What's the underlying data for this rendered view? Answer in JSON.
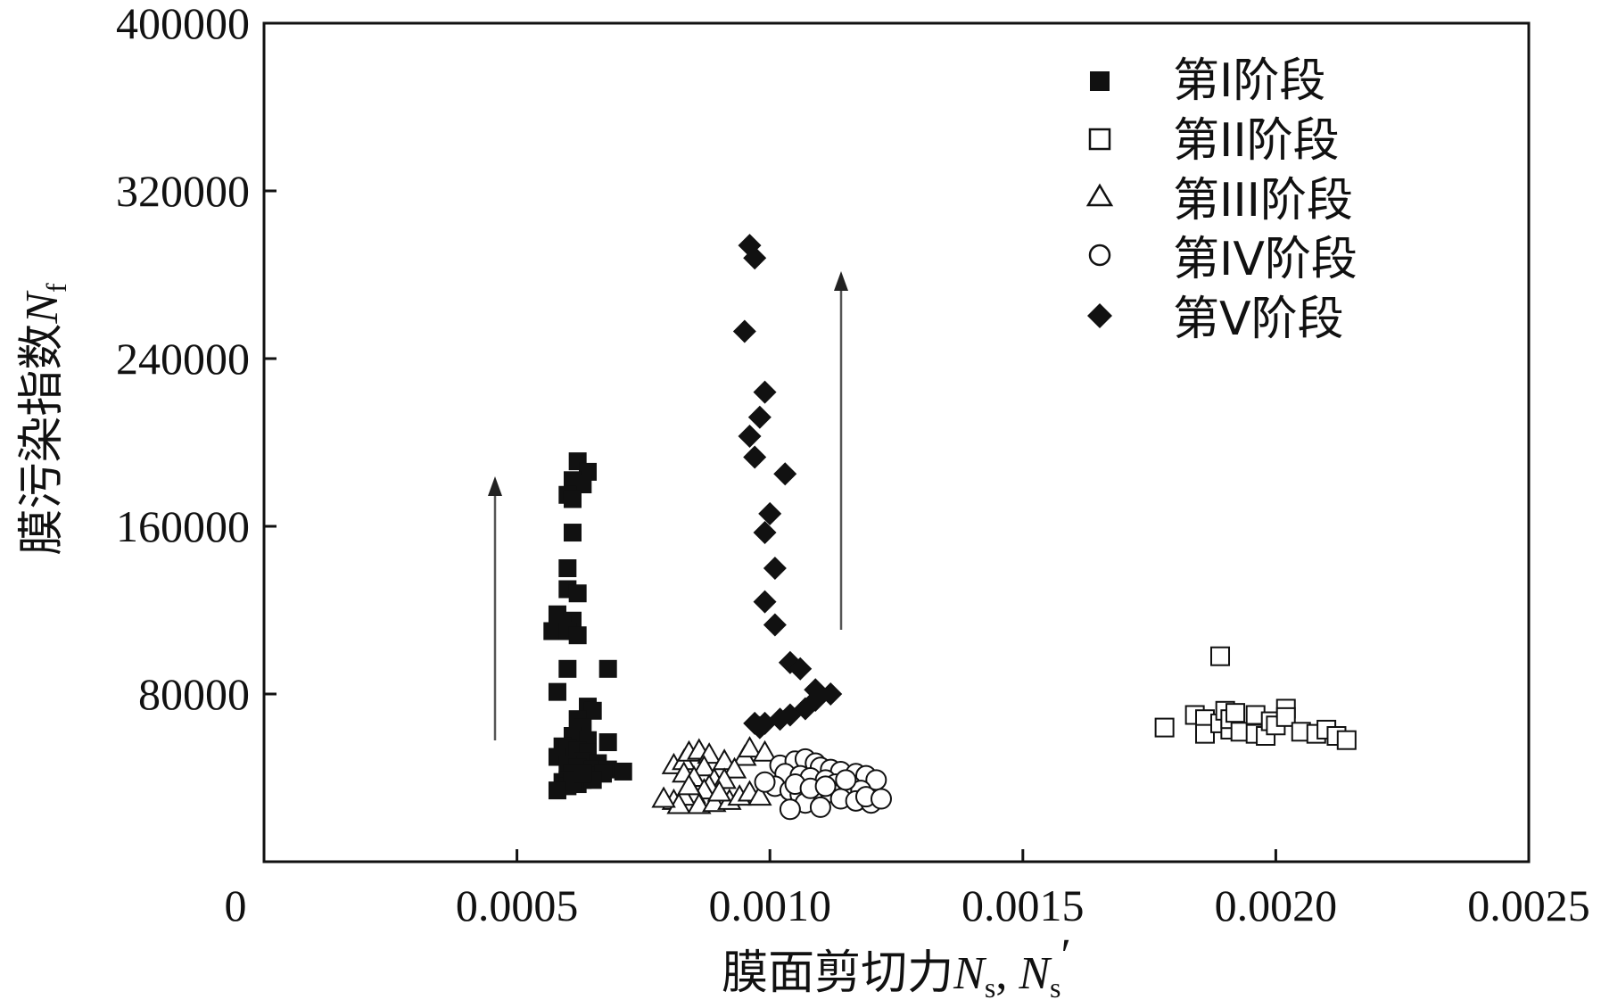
{
  "chart_data": {
    "type": "scatter",
    "title": "",
    "xlabel": {
      "text": "膜面剪切力",
      "var1": "N",
      "sub1": "s",
      "sep": ", ",
      "var2": "N",
      "sub2": "s",
      "prime": "′"
    },
    "ylabel": {
      "text": "膜污染指数",
      "var": "N",
      "sub": "f"
    },
    "xlim": [
      0,
      0.0025
    ],
    "ylim": [
      0,
      400000
    ],
    "x_ticks": [
      {
        "value": 0,
        "label": "0"
      },
      {
        "value": 0.0005,
        "label": "0.0005"
      },
      {
        "value": 0.001,
        "label": "0.0010"
      },
      {
        "value": 0.0015,
        "label": "0.0015"
      },
      {
        "value": 0.002,
        "label": "0.0020"
      },
      {
        "value": 0.0025,
        "label": "0.0025"
      }
    ],
    "y_ticks": [
      {
        "value": 80000,
        "label": "80000"
      },
      {
        "value": 160000,
        "label": "160000"
      },
      {
        "value": 240000,
        "label": "240000"
      },
      {
        "value": 320000,
        "label": "320000"
      },
      {
        "value": 400000,
        "label": "400000"
      }
    ],
    "grid": false,
    "legend_position": "top-right",
    "series": [
      {
        "name": "第I阶段",
        "marker": "square-filled",
        "color": "#111111",
        "points": [
          [
            0.00062,
            191000
          ],
          [
            0.00064,
            186000
          ],
          [
            0.00061,
            182000
          ],
          [
            0.00063,
            180000
          ],
          [
            0.0006,
            175000
          ],
          [
            0.00061,
            173000
          ],
          [
            0.00061,
            157000
          ],
          [
            0.0006,
            140000
          ],
          [
            0.0006,
            130000
          ],
          [
            0.00062,
            128000
          ],
          [
            0.00058,
            118000
          ],
          [
            0.00061,
            115000
          ],
          [
            0.00059,
            113000
          ],
          [
            0.00057,
            110000
          ],
          [
            0.0006,
            110000
          ],
          [
            0.00062,
            108000
          ],
          [
            0.0006,
            92000
          ],
          [
            0.00068,
            92000
          ],
          [
            0.00058,
            81000
          ],
          [
            0.00064,
            74000
          ],
          [
            0.00065,
            72000
          ],
          [
            0.00062,
            68000
          ],
          [
            0.00063,
            64000
          ],
          [
            0.00061,
            60000
          ],
          [
            0.00064,
            58000
          ],
          [
            0.00068,
            57000
          ],
          [
            0.00059,
            55000
          ],
          [
            0.0006,
            54000
          ],
          [
            0.00062,
            53000
          ],
          [
            0.00064,
            52000
          ],
          [
            0.00058,
            50000
          ],
          [
            0.00063,
            48000
          ],
          [
            0.00066,
            47000
          ],
          [
            0.0006,
            46000
          ],
          [
            0.00062,
            45000
          ],
          [
            0.00065,
            44000
          ],
          [
            0.00068,
            44000
          ],
          [
            0.00071,
            43000
          ],
          [
            0.00061,
            42000
          ],
          [
            0.00064,
            41000
          ],
          [
            0.00067,
            42000
          ],
          [
            0.00063,
            39000
          ],
          [
            0.0006,
            39000
          ],
          [
            0.00059,
            38000
          ],
          [
            0.00062,
            37000
          ],
          [
            0.00065,
            39000
          ],
          [
            0.0006,
            36000
          ],
          [
            0.00061,
            38000
          ],
          [
            0.00063,
            42000
          ],
          [
            0.00058,
            34000
          ]
        ]
      },
      {
        "name": "第II阶段",
        "marker": "square-open",
        "color": "#111111",
        "points": [
          [
            0.00178,
            64000
          ],
          [
            0.00184,
            70000
          ],
          [
            0.00186,
            68000
          ],
          [
            0.00186,
            61000
          ],
          [
            0.00189,
            66000
          ],
          [
            0.00189,
            98000
          ],
          [
            0.0019,
            72000
          ],
          [
            0.00191,
            63000
          ],
          [
            0.00191,
            68000
          ],
          [
            0.00192,
            71000
          ],
          [
            0.00193,
            62000
          ],
          [
            0.00196,
            70000
          ],
          [
            0.00196,
            61000
          ],
          [
            0.00198,
            60000
          ],
          [
            0.00199,
            67000
          ],
          [
            0.002,
            65000
          ],
          [
            0.00202,
            73000
          ],
          [
            0.00202,
            69000
          ],
          [
            0.00205,
            62000
          ],
          [
            0.00208,
            61000
          ],
          [
            0.0021,
            63000
          ],
          [
            0.00212,
            60000
          ],
          [
            0.00214,
            58000
          ]
        ]
      },
      {
        "name": "第III阶段",
        "marker": "triangle-open",
        "color": "#111111",
        "points": [
          [
            0.00081,
            46000
          ],
          [
            0.00083,
            48000
          ],
          [
            0.00084,
            52000
          ],
          [
            0.00086,
            53000
          ],
          [
            0.00088,
            51000
          ],
          [
            0.00087,
            45000
          ],
          [
            0.00083,
            42000
          ],
          [
            0.00085,
            40000
          ],
          [
            0.00089,
            39000
          ],
          [
            0.00091,
            48000
          ],
          [
            0.00095,
            50000
          ],
          [
            0.00096,
            54000
          ],
          [
            0.00099,
            52000
          ],
          [
            0.00093,
            44000
          ],
          [
            0.00091,
            39000
          ],
          [
            0.00088,
            36000
          ],
          [
            0.00087,
            34000
          ],
          [
            0.00085,
            32000
          ],
          [
            0.00083,
            31000
          ],
          [
            0.00081,
            29000
          ],
          [
            0.00082,
            27000
          ],
          [
            0.00086,
            27000
          ],
          [
            0.00089,
            28000
          ],
          [
            0.00092,
            29000
          ],
          [
            0.00094,
            31000
          ],
          [
            0.00096,
            33000
          ],
          [
            0.00098,
            31000
          ],
          [
            0.0009,
            33000
          ],
          [
            0.00084,
            36000
          ],
          [
            0.00079,
            30000
          ]
        ]
      },
      {
        "name": "第IV阶段",
        "marker": "circle-open",
        "color": "#111111",
        "points": [
          [
            0.00102,
            46000
          ],
          [
            0.00105,
            48000
          ],
          [
            0.00107,
            49000
          ],
          [
            0.00109,
            47000
          ],
          [
            0.0011,
            45000
          ],
          [
            0.00112,
            44000
          ],
          [
            0.00114,
            43000
          ],
          [
            0.00117,
            42000
          ],
          [
            0.00119,
            41000
          ],
          [
            0.00121,
            39000
          ],
          [
            0.00103,
            42000
          ],
          [
            0.00106,
            41000
          ],
          [
            0.00108,
            40000
          ],
          [
            0.00111,
            39000
          ],
          [
            0.00113,
            37000
          ],
          [
            0.00116,
            36000
          ],
          [
            0.00118,
            34000
          ],
          [
            0.00101,
            36000
          ],
          [
            0.00104,
            34000
          ],
          [
            0.00106,
            32000
          ],
          [
            0.00109,
            31000
          ],
          [
            0.00112,
            33000
          ],
          [
            0.00114,
            30000
          ],
          [
            0.00117,
            29000
          ],
          [
            0.0012,
            28000
          ],
          [
            0.00107,
            28000
          ],
          [
            0.0011,
            26000
          ],
          [
            0.00104,
            25000
          ],
          [
            0.00099,
            38000
          ],
          [
            0.00105,
            37000
          ],
          [
            0.00108,
            35000
          ],
          [
            0.00111,
            36000
          ],
          [
            0.00115,
            39000
          ],
          [
            0.00119,
            31000
          ],
          [
            0.00122,
            30000
          ]
        ]
      },
      {
        "name": "第V阶段",
        "marker": "diamond-filled",
        "color": "#111111",
        "points": [
          [
            0.00096,
            294000
          ],
          [
            0.00097,
            288000
          ],
          [
            0.00095,
            253000
          ],
          [
            0.00099,
            224000
          ],
          [
            0.00098,
            212000
          ],
          [
            0.00096,
            203000
          ],
          [
            0.00097,
            193000
          ],
          [
            0.00103,
            185000
          ],
          [
            0.001,
            166000
          ],
          [
            0.00099,
            157000
          ],
          [
            0.00101,
            140000
          ],
          [
            0.00099,
            124000
          ],
          [
            0.00101,
            113000
          ],
          [
            0.00104,
            95000
          ],
          [
            0.00106,
            92000
          ],
          [
            0.00109,
            82000
          ],
          [
            0.00112,
            80000
          ],
          [
            0.00109,
            77000
          ],
          [
            0.00107,
            73000
          ],
          [
            0.00104,
            70000
          ],
          [
            0.00102,
            68000
          ],
          [
            0.00099,
            66000
          ],
          [
            0.00097,
            66000
          ],
          [
            0.00098,
            64000
          ]
        ]
      }
    ]
  }
}
